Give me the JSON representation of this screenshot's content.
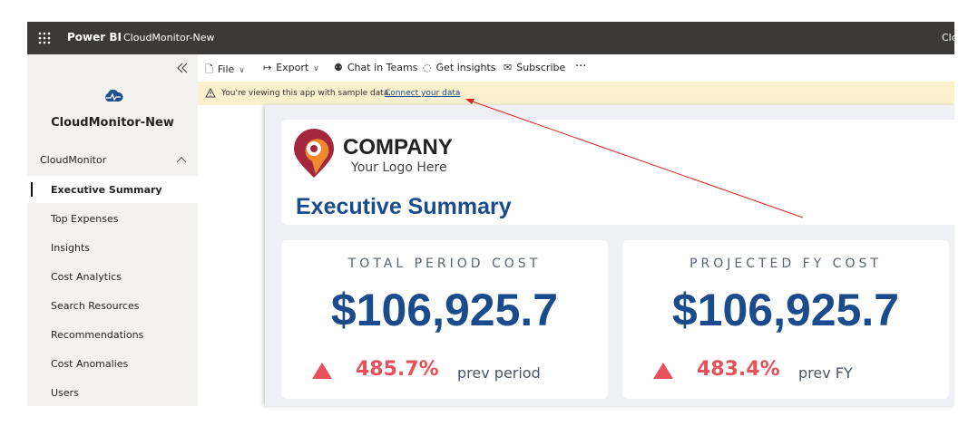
{
  "topbar": {
    "app": "Power BI",
    "workspace": "CloudMonitor-New",
    "user": "Clo"
  },
  "toolbar": {
    "items": [
      "File",
      "Export",
      "Chat in Teams",
      "Get insights",
      "Subscribe"
    ]
  },
  "banner": {
    "message": "You're viewing this app with sample data.",
    "link": "Connect your data"
  },
  "sidebar": {
    "app_name": "CloudMonitor-New",
    "section": "CloudMonitor",
    "items": [
      "Executive Summary",
      "Top Expenses",
      "Insights",
      "Cost Analytics",
      "Search Resources",
      "Recommendations",
      "Cost Anomalies",
      "Users"
    ],
    "active": 0
  },
  "report": {
    "logo": {
      "name": "COMPANY",
      "tagline": "Your Logo Here"
    },
    "title": "Executive Summary",
    "kpis": [
      {
        "label": "TOTAL PERIOD COST",
        "value": "$106,925.7",
        "change": "485.7%",
        "comparison": "prev period"
      },
      {
        "label": "PROJECTED FY COST",
        "value": "$106,925.7",
        "change": "483.4%",
        "comparison": "prev FY"
      }
    ]
  }
}
